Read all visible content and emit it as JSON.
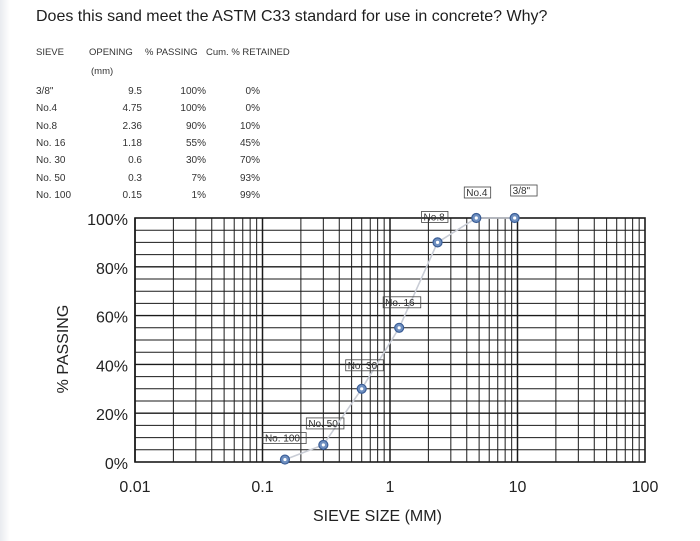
{
  "question": "Does this sand meet the ASTM C33 standard for use in concrete? Why?",
  "table": {
    "headers": {
      "sieve": "SIEVE",
      "opening": "OPENING",
      "opening_unit": "(mm)",
      "passing": "% PASSING",
      "retained": "Cum. % RETAINED"
    },
    "rows": [
      {
        "sieve": "3/8\"",
        "opening": "9.5",
        "passing": "100%",
        "retained": "0%"
      },
      {
        "sieve": "No.4",
        "opening": "4.75",
        "passing": "100%",
        "retained": "0%"
      },
      {
        "sieve": "No.8",
        "opening": "2.36",
        "passing": "90%",
        "retained": "10%"
      },
      {
        "sieve": "No. 16",
        "opening": "1.18",
        "passing": "55%",
        "retained": "45%"
      },
      {
        "sieve": "No. 30",
        "opening": "0.6",
        "passing": "30%",
        "retained": "70%"
      },
      {
        "sieve": "No. 50",
        "opening": "0.3",
        "passing": "7%",
        "retained": "93%"
      },
      {
        "sieve": "No. 100",
        "opening": "0.15",
        "passing": "1%",
        "retained": "99%"
      }
    ]
  },
  "chart_data": {
    "type": "scatter",
    "xscale": "log",
    "xlim": [
      0.01,
      100
    ],
    "ylim": [
      0,
      100
    ],
    "grid": true,
    "xlabel": "SIEVE SIZE (MM)",
    "ylabel": "% PASSING",
    "xticks": [
      {
        "value": 0.01,
        "label": "0.01"
      },
      {
        "value": 0.1,
        "label": "0.1"
      },
      {
        "value": 1,
        "label": "1"
      },
      {
        "value": 10,
        "label": "10"
      },
      {
        "value": 100,
        "label": "100"
      }
    ],
    "yticks": [
      {
        "value": 0,
        "label": "0%"
      },
      {
        "value": 20,
        "label": "20%"
      },
      {
        "value": 40,
        "label": "40%"
      },
      {
        "value": 60,
        "label": "60%"
      },
      {
        "value": 80,
        "label": "80%"
      },
      {
        "value": 100,
        "label": "100%"
      }
    ],
    "points": [
      {
        "x": 0.15,
        "y": 1,
        "label": "No. 100"
      },
      {
        "x": 0.3,
        "y": 7,
        "label": "No. 50"
      },
      {
        "x": 0.6,
        "y": 30,
        "label": "No. 30"
      },
      {
        "x": 1.18,
        "y": 55,
        "label": "No. 16"
      },
      {
        "x": 2.36,
        "y": 90,
        "label": "No.8"
      },
      {
        "x": 4.75,
        "y": 100,
        "label": "No.4"
      },
      {
        "x": 9.5,
        "y": 100,
        "label": "3/8\""
      }
    ],
    "colors": {
      "grid": "#1a1a1a",
      "marker_fill": "#6e8fc0",
      "marker_stroke": "#3a5d96",
      "curve": "#c9cdd6",
      "label_box": "#444444"
    }
  }
}
